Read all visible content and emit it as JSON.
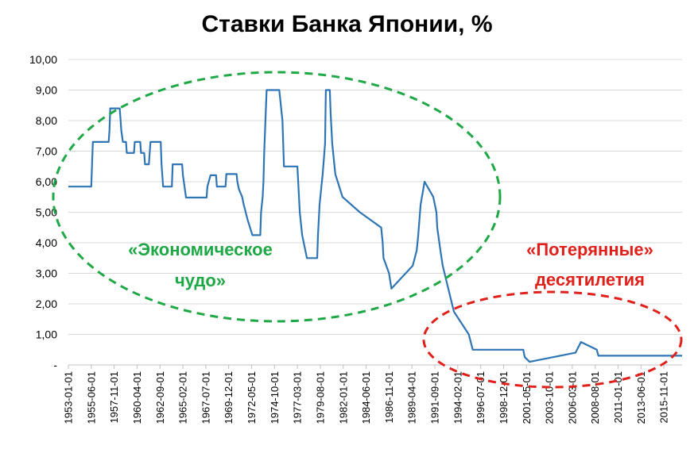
{
  "chart_data": {
    "type": "line",
    "title": "Ставки Банка Японии, %",
    "xlabel": "",
    "ylabel": "",
    "ylim": [
      0,
      10
    ],
    "y_ticks": [
      "-",
      "1,00",
      "2,00",
      "3,00",
      "4,00",
      "5,00",
      "6,00",
      "7,00",
      "8,00",
      "9,00",
      "10,00"
    ],
    "x_ticks": [
      "1953-01-01",
      "1955-06-01",
      "1957-11-01",
      "1960-04-01",
      "1962-09-01",
      "1965-02-01",
      "1967-07-01",
      "1969-12-01",
      "1972-05-01",
      "1974-10-01",
      "1977-03-01",
      "1979-08-01",
      "1982-01-01",
      "1984-06-01",
      "1986-11-01",
      "1989-04-01",
      "1991-09-01",
      "1994-02-01",
      "1996-07-01",
      "1998-12-01",
      "2001-05-01",
      "2003-10-01",
      "2006-03-01",
      "2008-08-01",
      "2011-01-01",
      "2013-06-01",
      "2015-11-01"
    ],
    "xlim": [
      "1953-01-01",
      "2017-10-01"
    ],
    "grid": "horizontal",
    "legend": "none",
    "series": [
      {
        "color": "#2E75B6",
        "points": [
          [
            "1953-01-01",
            5.84
          ],
          [
            "1955-06-01",
            5.84
          ],
          [
            "1955-08-01",
            7.3
          ],
          [
            "1957-04-01",
            7.3
          ],
          [
            "1957-05-01",
            7.67
          ],
          [
            "1957-06-01",
            8.4
          ],
          [
            "1958-06-01",
            8.4
          ],
          [
            "1958-08-01",
            7.67
          ],
          [
            "1958-10-01",
            7.3
          ],
          [
            "1959-02-01",
            7.3
          ],
          [
            "1959-03-01",
            6.94
          ],
          [
            "1959-12-01",
            6.94
          ],
          [
            "1960-01-01",
            7.3
          ],
          [
            "1960-08-01",
            7.3
          ],
          [
            "1960-09-01",
            6.94
          ],
          [
            "1961-01-01",
            6.94
          ],
          [
            "1961-02-01",
            6.57
          ],
          [
            "1961-07-01",
            6.57
          ],
          [
            "1961-08-01",
            6.94
          ],
          [
            "1961-09-01",
            7.3
          ],
          [
            "1962-10-01",
            7.3
          ],
          [
            "1962-11-01",
            6.57
          ],
          [
            "1962-12-01",
            6.21
          ],
          [
            "1963-01-01",
            5.84
          ],
          [
            "1963-12-01",
            5.84
          ],
          [
            "1964-01-01",
            6.57
          ],
          [
            "1965-01-01",
            6.57
          ],
          [
            "1965-02-01",
            6.21
          ],
          [
            "1965-04-01",
            5.84
          ],
          [
            "1965-06-01",
            5.48
          ],
          [
            "1967-08-01",
            5.48
          ],
          [
            "1967-09-01",
            5.84
          ],
          [
            "1968-01-01",
            6.21
          ],
          [
            "1968-08-01",
            6.21
          ],
          [
            "1968-09-01",
            5.84
          ],
          [
            "1969-08-01",
            5.84
          ],
          [
            "1969-09-01",
            6.25
          ],
          [
            "1970-10-01",
            6.25
          ],
          [
            "1970-11-01",
            6.0
          ],
          [
            "1971-01-01",
            5.75
          ],
          [
            "1971-05-01",
            5.5
          ],
          [
            "1971-07-01",
            5.25
          ],
          [
            "1971-12-01",
            4.75
          ],
          [
            "1972-06-01",
            4.25
          ],
          [
            "1973-04-01",
            4.25
          ],
          [
            "1973-05-01",
            5.0
          ],
          [
            "1973-07-01",
            5.5
          ],
          [
            "1973-08-01",
            6.0
          ],
          [
            "1973-09-01",
            7.0
          ],
          [
            "1973-12-01",
            9.0
          ],
          [
            "1975-04-01",
            9.0
          ],
          [
            "1975-06-01",
            8.5
          ],
          [
            "1975-08-01",
            8.0
          ],
          [
            "1975-10-01",
            6.5
          ],
          [
            "1977-03-01",
            6.5
          ],
          [
            "1977-04-01",
            6.0
          ],
          [
            "1977-06-01",
            5.0
          ],
          [
            "1977-09-01",
            4.25
          ],
          [
            "1978-03-01",
            3.5
          ],
          [
            "1979-04-01",
            3.5
          ],
          [
            "1979-05-01",
            4.25
          ],
          [
            "1979-07-01",
            5.25
          ],
          [
            "1979-11-01",
            6.25
          ],
          [
            "1980-02-01",
            7.25
          ],
          [
            "1980-03-01",
            9.0
          ],
          [
            "1980-08-01",
            9.0
          ],
          [
            "1980-09-01",
            8.25
          ],
          [
            "1980-11-01",
            7.25
          ],
          [
            "1981-03-01",
            6.25
          ],
          [
            "1981-12-01",
            5.5
          ],
          [
            "1983-10-01",
            5.0
          ],
          [
            "1986-01-01",
            4.5
          ],
          [
            "1986-03-01",
            4.0
          ],
          [
            "1986-04-01",
            3.5
          ],
          [
            "1986-11-01",
            3.0
          ],
          [
            "1987-02-01",
            2.5
          ],
          [
            "1989-05-01",
            3.25
          ],
          [
            "1989-10-01",
            3.75
          ],
          [
            "1989-12-01",
            4.25
          ],
          [
            "1990-03-01",
            5.25
          ],
          [
            "1990-08-01",
            6.0
          ],
          [
            "1991-07-01",
            5.5
          ],
          [
            "1991-11-01",
            5.0
          ],
          [
            "1991-12-01",
            4.5
          ],
          [
            "1992-04-01",
            3.75
          ],
          [
            "1992-07-01",
            3.25
          ],
          [
            "1993-02-01",
            2.5
          ],
          [
            "1993-09-01",
            1.75
          ],
          [
            "1995-04-01",
            1.0
          ],
          [
            "1995-09-01",
            0.5
          ],
          [
            "2001-01-01",
            0.5
          ],
          [
            "2001-02-01",
            0.35
          ],
          [
            "2001-03-01",
            0.25
          ],
          [
            "2001-09-01",
            0.1
          ],
          [
            "2006-07-01",
            0.4
          ],
          [
            "2007-02-01",
            0.75
          ],
          [
            "2008-10-01",
            0.5
          ],
          [
            "2008-12-01",
            0.3
          ],
          [
            "2017-10-01",
            0.3
          ]
        ]
      }
    ],
    "annotations": [
      {
        "text_lines": [
          "«Экономическое",
          "чудо»"
        ],
        "color": "#1FA846"
      },
      {
        "text_lines": [
          "«Потерянные»",
          "десятилетия"
        ],
        "color": "#E0201B"
      }
    ]
  }
}
